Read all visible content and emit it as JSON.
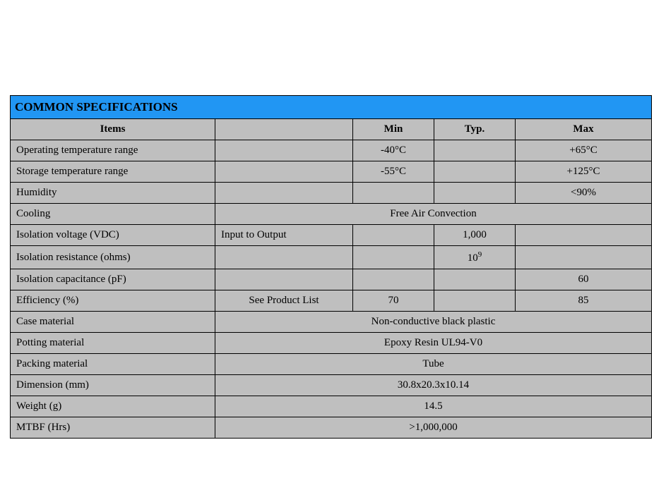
{
  "table": {
    "title": "COMMON SPECIFICATIONS",
    "headers": {
      "items": "Items",
      "extra": "",
      "min": "Min",
      "typ": "Typ.",
      "max": "Max"
    },
    "rows": {
      "op_temp": {
        "label": "Operating temperature range",
        "extra": "",
        "min": "-40°C",
        "typ": "",
        "max": "+65°C"
      },
      "storage_temp": {
        "label": "Storage temperature range",
        "extra": "",
        "min": "-55°C",
        "typ": "",
        "max": "+125°C"
      },
      "humidity": {
        "label": "Humidity",
        "extra": "",
        "min": "",
        "typ": "",
        "max": "<90%"
      },
      "cooling": {
        "label": "Cooling",
        "value": "Free Air Convection"
      },
      "iso_voltage": {
        "label": "Isolation voltage (VDC)",
        "extra": "Input to Output",
        "min": "",
        "typ": "1,000",
        "max": ""
      },
      "iso_resistance": {
        "label": "Isolation resistance (ohms)",
        "extra": "",
        "min": "",
        "typ_base": "10",
        "typ_sup": "9",
        "max": ""
      },
      "iso_capacitance": {
        "label": "Isolation capacitance (pF)",
        "extra": "",
        "min": "",
        "typ": "",
        "max": "60"
      },
      "efficiency": {
        "label": "Efficiency (%)",
        "extra": "See Product List",
        "min": "70",
        "typ": "",
        "max": "85"
      },
      "case_material": {
        "label": "Case material",
        "value": "Non-conductive black plastic"
      },
      "potting_material": {
        "label": "Potting material",
        "value": "Epoxy Resin UL94-V0"
      },
      "packing_material": {
        "label": "Packing material",
        "value": "Tube"
      },
      "dimension": {
        "label": "Dimension (mm)",
        "value": "30.8x20.3x10.14"
      },
      "weight": {
        "label": "Weight (g)",
        "value": "14.5"
      },
      "mtbf": {
        "label": "MTBF (Hrs)",
        "value": ">1,000,000"
      }
    },
    "colors": {
      "title_bg": "#2196f3",
      "cell_bg": "#bfbfbf",
      "border": "#000000",
      "text": "#000000"
    }
  }
}
